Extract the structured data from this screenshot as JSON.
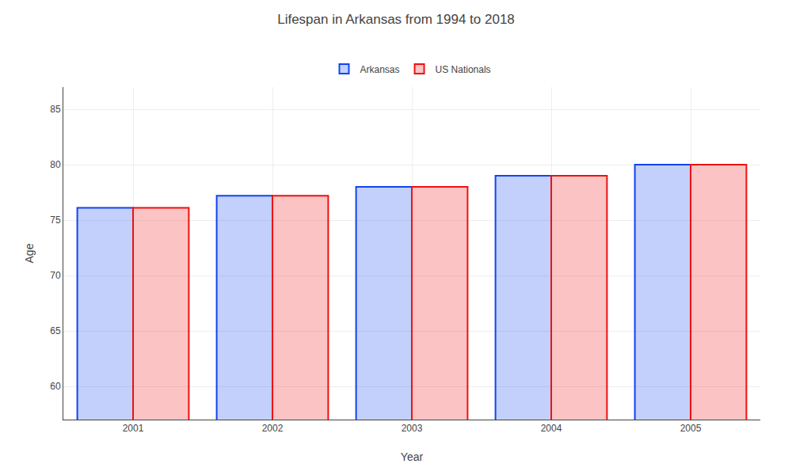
{
  "chart_data": {
    "type": "bar",
    "title": "Lifespan in Arkansas from 1994 to 2018",
    "x_label": "Year",
    "y_label": "Age",
    "categories": [
      "2001",
      "2002",
      "2003",
      "2004",
      "2005"
    ],
    "series": [
      {
        "name": "Arkansas",
        "color": "#1144ee",
        "values": [
          76.1,
          77.2,
          78.0,
          79.0,
          80.0
        ]
      },
      {
        "name": "US Nationals",
        "color": "#ee1111",
        "values": [
          76.1,
          77.2,
          78.0,
          79.0,
          80.0
        ]
      }
    ],
    "ylim": [
      57,
      87
    ],
    "yticks": [
      60,
      65,
      70,
      75,
      80,
      85
    ],
    "grid": true,
    "legend": "top"
  }
}
